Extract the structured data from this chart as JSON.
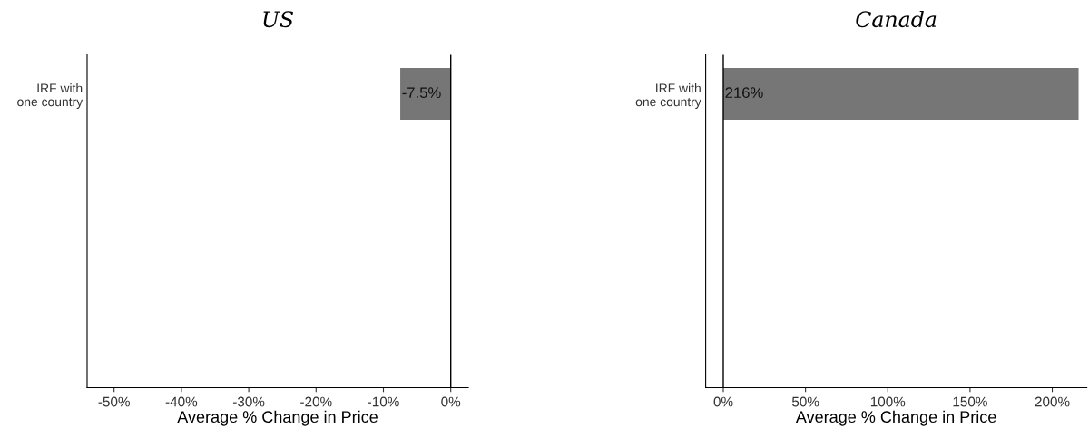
{
  "chart_data": [
    {
      "type": "bar",
      "orientation": "horizontal",
      "title": "US",
      "xlabel": "Average % Change in Price",
      "categories": [
        "IRF with\none country",
        null,
        null,
        null,
        null
      ],
      "values": [
        -7.5,
        null,
        null,
        null,
        null
      ],
      "color": "#767676",
      "value_labels": [
        "-7.5%",
        null,
        null,
        null,
        null
      ],
      "xlim": [
        -54,
        2.6
      ],
      "xticks": [
        {
          "value": -50,
          "label": "-50%"
        },
        {
          "value": -40,
          "label": "-40%"
        },
        {
          "value": -30,
          "label": "-30%"
        },
        {
          "value": -20,
          "label": "-20%"
        },
        {
          "value": -10,
          "label": "-10%"
        },
        {
          "value": 0,
          "label": "0%"
        }
      ],
      "ref_lines": [
        {
          "axis": "x",
          "value": 0,
          "color": "#000000"
        }
      ],
      "grid": false,
      "legend": false
    },
    {
      "type": "bar",
      "orientation": "horizontal",
      "title": "Canada",
      "xlabel": "Average % Change in Price",
      "categories": [
        "IRF with\none country",
        null,
        null,
        null,
        null
      ],
      "values": [
        216,
        null,
        null,
        null,
        null
      ],
      "color": "#767676",
      "value_labels": [
        "216%",
        null,
        null,
        null,
        null
      ],
      "xlim": [
        -10.7,
        221
      ],
      "xticks": [
        {
          "value": 0,
          "label": "0%"
        },
        {
          "value": 50,
          "label": "50%"
        },
        {
          "value": 100,
          "label": "100%"
        },
        {
          "value": 150,
          "label": "150%"
        },
        {
          "value": 200,
          "label": "200%"
        }
      ],
      "ref_lines": [
        {
          "axis": "x",
          "value": 0,
          "color": "#000000"
        }
      ],
      "grid": false,
      "legend": false
    }
  ]
}
